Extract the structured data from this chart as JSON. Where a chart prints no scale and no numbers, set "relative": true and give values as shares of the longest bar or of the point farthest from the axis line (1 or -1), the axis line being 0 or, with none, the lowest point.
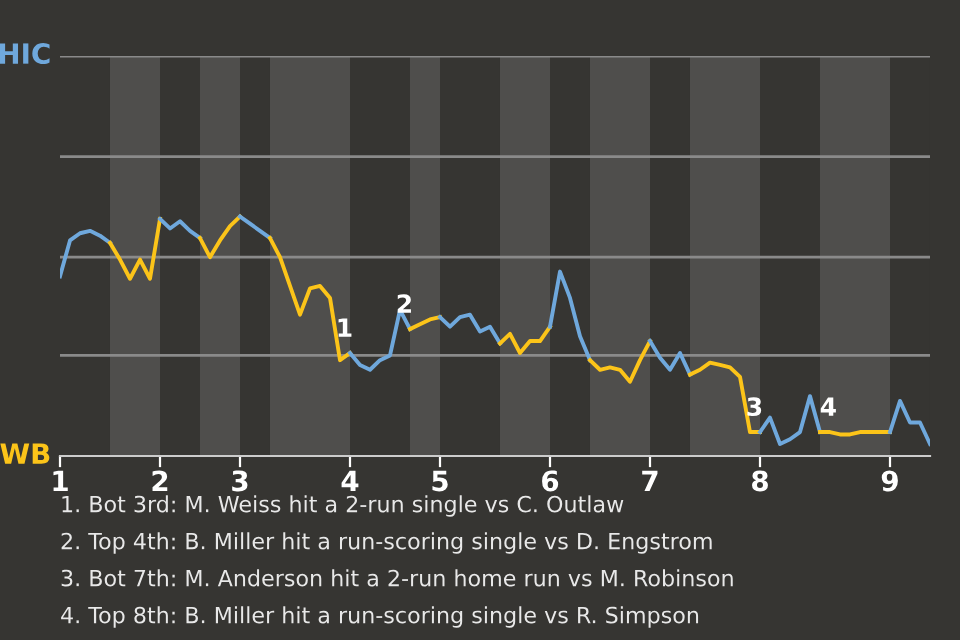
{
  "chart_data": {
    "type": "line",
    "relative": true,
    "categories": [
      "1",
      null,
      null,
      null,
      null,
      null,
      null,
      null,
      null,
      null,
      "2",
      null,
      null,
      null,
      null,
      null,
      null,
      null,
      "3",
      null,
      null,
      null,
      null,
      null,
      null,
      null,
      null,
      null,
      null,
      "4",
      null,
      null,
      null,
      null,
      null,
      null,
      null,
      null,
      "5",
      null,
      null,
      null,
      null,
      null,
      null,
      null,
      null,
      null,
      null,
      "6",
      null,
      null,
      null,
      null,
      null,
      null,
      null,
      null,
      null,
      "7",
      null,
      null,
      null,
      null,
      null,
      null,
      null,
      null,
      null,
      null,
      "8",
      null,
      null,
      null,
      null,
      null,
      null,
      null,
      null,
      null,
      null,
      null,
      null,
      "9",
      null,
      null,
      null,
      null
    ],
    "ref_lines": [
      {
        "axis": "y",
        "value": 0.42,
        "color": "#8a8a8a"
      },
      {
        "axis": "y",
        "value": 0.83,
        "color": "#8a8a8a"
      },
      {
        "axis": "y",
        "value": 1.25,
        "color": "#8a8a8a"
      },
      {
        "axis": "y",
        "value": 1.67,
        "color": "#8a8a8a"
      }
    ],
    "marker": "none",
    "line_style": "solid",
    "series": [
      {
        "name": "HIC",
        "color": "#6fa8dc",
        "values": [
          0.75,
          0.9,
          0.93,
          0.94,
          0.92,
          0.89,
          null,
          null,
          null,
          null,
          null,
          null,
          null,
          null,
          null,
          null,
          null,
          null,
          null,
          null,
          null,
          null,
          null,
          null,
          null,
          null,
          null,
          null,
          null,
          null,
          null,
          null,
          null,
          null,
          null,
          null,
          null,
          null,
          null,
          null,
          null,
          null,
          null,
          null,
          null,
          null,
          null,
          null,
          null,
          null,
          null,
          null,
          null,
          null,
          null,
          null,
          null,
          null,
          null,
          null,
          null,
          null,
          null,
          null,
          null,
          null,
          null,
          null,
          null,
          null,
          null,
          null,
          null,
          null,
          null,
          null,
          null,
          null,
          null,
          null,
          null,
          null,
          null,
          null,
          null,
          null,
          null,
          null
        ]
      },
      {
        "name": "WB",
        "color": "#fcc419",
        "values": [
          null,
          null,
          null,
          null,
          null,
          0.89,
          0.82,
          0.74,
          0.82,
          0.74,
          0.99,
          null,
          null,
          null,
          null,
          null,
          null,
          null,
          null,
          null,
          null,
          null,
          null,
          null,
          null,
          null,
          null,
          null,
          null,
          null,
          null,
          null,
          null,
          null,
          null,
          null,
          null,
          null,
          null,
          null,
          null,
          null,
          null,
          null,
          null,
          null,
          null,
          null,
          null,
          null,
          null,
          null,
          null,
          null,
          null,
          null,
          null,
          null,
          null,
          null,
          null,
          null,
          null,
          null,
          null,
          null,
          null,
          null,
          null,
          null,
          null,
          null,
          null,
          null,
          null,
          null,
          null,
          null,
          null,
          null,
          null,
          null,
          null,
          null,
          null,
          null,
          null,
          null
        ]
      },
      {
        "color": "#6fa8dc",
        "values": [
          null,
          null,
          null,
          null,
          null,
          null,
          null,
          null,
          null,
          null,
          0.99,
          0.95,
          0.98,
          0.94,
          0.91,
          null,
          null,
          null,
          null,
          null,
          null,
          null,
          null,
          null,
          null,
          null,
          null,
          null,
          null,
          null,
          null,
          null,
          null,
          null,
          null,
          null,
          null,
          null,
          null,
          null,
          null,
          null,
          null,
          null,
          null,
          null,
          null,
          null,
          null,
          null,
          null,
          null,
          null,
          null,
          null,
          null,
          null,
          null,
          null,
          null,
          null,
          null,
          null,
          null,
          null,
          null,
          null,
          null,
          null,
          null,
          null,
          null,
          null,
          null,
          null,
          null,
          null,
          null,
          null,
          null,
          null,
          null,
          null,
          null,
          null,
          null,
          null,
          null
        ]
      },
      {
        "color": "#fcc419",
        "values": [
          null,
          null,
          null,
          null,
          null,
          null,
          null,
          null,
          null,
          null,
          null,
          null,
          null,
          null,
          0.91,
          0.83,
          0.9,
          0.96,
          1,
          null,
          null,
          null,
          null,
          null,
          null,
          null,
          null,
          null,
          null,
          null,
          null,
          null,
          null,
          null,
          null,
          null,
          null,
          null,
          null,
          null,
          null,
          null,
          null,
          null,
          null,
          null,
          null,
          null,
          null,
          null,
          null,
          null,
          null,
          null,
          null,
          null,
          null,
          null,
          null,
          null,
          null,
          null,
          null,
          null,
          null,
          null,
          null,
          null,
          null,
          null,
          null,
          null,
          null,
          null,
          null,
          null,
          null,
          null,
          null,
          null,
          null,
          null,
          null,
          null,
          null,
          null,
          null,
          null
        ]
      },
      {
        "color": "#6fa8dc",
        "values": [
          null,
          null,
          null,
          null,
          null,
          null,
          null,
          null,
          null,
          null,
          null,
          null,
          null,
          null,
          null,
          null,
          null,
          null,
          1,
          0.97,
          0.94,
          0.91,
          null,
          null,
          null,
          null,
          null,
          null,
          null,
          null,
          null,
          null,
          null,
          null,
          null,
          null,
          null,
          null,
          null,
          null,
          null,
          null,
          null,
          null,
          null,
          null,
          null,
          null,
          null,
          null,
          null,
          null,
          null,
          null,
          null,
          null,
          null,
          null,
          null,
          null,
          null,
          null,
          null,
          null,
          null,
          null,
          null,
          null,
          null,
          null,
          null,
          null,
          null,
          null,
          null,
          null,
          null,
          null,
          null,
          null,
          null,
          null,
          null,
          null,
          null,
          null,
          null,
          null
        ]
      },
      {
        "color": "#fcc419",
        "values": [
          null,
          null,
          null,
          null,
          null,
          null,
          null,
          null,
          null,
          null,
          null,
          null,
          null,
          null,
          null,
          null,
          null,
          null,
          null,
          null,
          null,
          0.91,
          0.83,
          0.71,
          0.59,
          0.7,
          0.71,
          0.66,
          0.4,
          0.43,
          null,
          null,
          null,
          null,
          null,
          null,
          null,
          null,
          null,
          null,
          null,
          null,
          null,
          null,
          null,
          null,
          null,
          null,
          null,
          null,
          null,
          null,
          null,
          null,
          null,
          null,
          null,
          null,
          null,
          null,
          null,
          null,
          null,
          null,
          null,
          null,
          null,
          null,
          null,
          null,
          null,
          null,
          null,
          null,
          null,
          null,
          null,
          null,
          null,
          null,
          null,
          null,
          null,
          null,
          null,
          null,
          null,
          null
        ]
      },
      {
        "color": "#6fa8dc",
        "values": [
          null,
          null,
          null,
          null,
          null,
          null,
          null,
          null,
          null,
          null,
          null,
          null,
          null,
          null,
          null,
          null,
          null,
          null,
          null,
          null,
          null,
          null,
          null,
          null,
          null,
          null,
          null,
          null,
          null,
          0.43,
          0.38,
          0.36,
          0.4,
          0.42,
          0.61,
          0.53,
          null,
          null,
          null,
          null,
          null,
          null,
          null,
          null,
          null,
          null,
          null,
          null,
          null,
          null,
          null,
          null,
          null,
          null,
          null,
          null,
          null,
          null,
          null,
          null,
          null,
          null,
          null,
          null,
          null,
          null,
          null,
          null,
          null,
          null,
          null,
          null,
          null,
          null,
          null,
          null,
          null,
          null,
          null,
          null,
          null,
          null,
          null,
          null,
          null,
          null,
          null,
          null
        ]
      },
      {
        "color": "#fcc419",
        "values": [
          null,
          null,
          null,
          null,
          null,
          null,
          null,
          null,
          null,
          null,
          null,
          null,
          null,
          null,
          null,
          null,
          null,
          null,
          null,
          null,
          null,
          null,
          null,
          null,
          null,
          null,
          null,
          null,
          null,
          null,
          null,
          null,
          null,
          null,
          null,
          0.53,
          0.55,
          0.57,
          0.58,
          null,
          null,
          null,
          null,
          null,
          null,
          null,
          null,
          null,
          null,
          null,
          null,
          null,
          null,
          null,
          null,
          null,
          null,
          null,
          null,
          null,
          null,
          null,
          null,
          null,
          null,
          null,
          null,
          null,
          null,
          null,
          null,
          null,
          null,
          null,
          null,
          null,
          null,
          null,
          null,
          null,
          null,
          null,
          null,
          null,
          null,
          null,
          null,
          null
        ]
      },
      {
        "color": "#6fa8dc",
        "values": [
          null,
          null,
          null,
          null,
          null,
          null,
          null,
          null,
          null,
          null,
          null,
          null,
          null,
          null,
          null,
          null,
          null,
          null,
          null,
          null,
          null,
          null,
          null,
          null,
          null,
          null,
          null,
          null,
          null,
          null,
          null,
          null,
          null,
          null,
          null,
          null,
          null,
          null,
          0.58,
          0.54,
          0.58,
          0.59,
          0.52,
          0.54,
          0.47,
          null,
          null,
          null,
          null,
          null,
          null,
          null,
          null,
          null,
          null,
          null,
          null,
          null,
          null,
          null,
          null,
          null,
          null,
          null,
          null,
          null,
          null,
          null,
          null,
          null,
          null,
          null,
          null,
          null,
          null,
          null,
          null,
          null,
          null,
          null,
          null,
          null,
          null,
          null,
          null,
          null,
          null,
          null
        ]
      },
      {
        "color": "#fcc419",
        "values": [
          null,
          null,
          null,
          null,
          null,
          null,
          null,
          null,
          null,
          null,
          null,
          null,
          null,
          null,
          null,
          null,
          null,
          null,
          null,
          null,
          null,
          null,
          null,
          null,
          null,
          null,
          null,
          null,
          null,
          null,
          null,
          null,
          null,
          null,
          null,
          null,
          null,
          null,
          null,
          null,
          null,
          null,
          null,
          null,
          0.47,
          0.51,
          0.43,
          0.48,
          0.48,
          0.54,
          null,
          null,
          null,
          null,
          null,
          null,
          null,
          null,
          null,
          null,
          null,
          null,
          null,
          null,
          null,
          null,
          null,
          null,
          null,
          null,
          null,
          null,
          null,
          null,
          null,
          null,
          null,
          null,
          null,
          null,
          null,
          null,
          null,
          null,
          null,
          null,
          null,
          null
        ]
      },
      {
        "color": "#6fa8dc",
        "values": [
          null,
          null,
          null,
          null,
          null,
          null,
          null,
          null,
          null,
          null,
          null,
          null,
          null,
          null,
          null,
          null,
          null,
          null,
          null,
          null,
          null,
          null,
          null,
          null,
          null,
          null,
          null,
          null,
          null,
          null,
          null,
          null,
          null,
          null,
          null,
          null,
          null,
          null,
          null,
          null,
          null,
          null,
          null,
          null,
          null,
          null,
          null,
          null,
          null,
          0.54,
          0.77,
          0.66,
          0.5,
          0.4,
          null,
          null,
          null,
          null,
          null,
          null,
          null,
          null,
          null,
          null,
          null,
          null,
          null,
          null,
          null,
          null,
          null,
          null,
          null,
          null,
          null,
          null,
          null,
          null,
          null,
          null,
          null,
          null,
          null,
          null,
          null,
          null,
          null,
          null
        ]
      },
      {
        "color": "#fcc419",
        "values": [
          null,
          null,
          null,
          null,
          null,
          null,
          null,
          null,
          null,
          null,
          null,
          null,
          null,
          null,
          null,
          null,
          null,
          null,
          null,
          null,
          null,
          null,
          null,
          null,
          null,
          null,
          null,
          null,
          null,
          null,
          null,
          null,
          null,
          null,
          null,
          null,
          null,
          null,
          null,
          null,
          null,
          null,
          null,
          null,
          null,
          null,
          null,
          null,
          null,
          null,
          null,
          null,
          null,
          0.4,
          0.36,
          0.37,
          0.36,
          0.31,
          0.4,
          0.48,
          null,
          null,
          null,
          null,
          null,
          null,
          null,
          null,
          null,
          null,
          null,
          null,
          null,
          null,
          null,
          null,
          null,
          null,
          null,
          null,
          null,
          null,
          null,
          null,
          null,
          null,
          null,
          null
        ]
      },
      {
        "color": "#6fa8dc",
        "values": [
          null,
          null,
          null,
          null,
          null,
          null,
          null,
          null,
          null,
          null,
          null,
          null,
          null,
          null,
          null,
          null,
          null,
          null,
          null,
          null,
          null,
          null,
          null,
          null,
          null,
          null,
          null,
          null,
          null,
          null,
          null,
          null,
          null,
          null,
          null,
          null,
          null,
          null,
          null,
          null,
          null,
          null,
          null,
          null,
          null,
          null,
          null,
          null,
          null,
          null,
          null,
          null,
          null,
          null,
          null,
          null,
          null,
          null,
          null,
          0.48,
          0.41,
          0.36,
          0.43,
          0.34,
          null,
          null,
          null,
          null,
          null,
          null,
          null,
          null,
          null,
          null,
          null,
          null,
          null,
          null,
          null,
          null,
          null,
          null,
          null,
          null,
          null,
          null,
          null,
          null
        ]
      },
      {
        "color": "#fcc419",
        "values": [
          null,
          null,
          null,
          null,
          null,
          null,
          null,
          null,
          null,
          null,
          null,
          null,
          null,
          null,
          null,
          null,
          null,
          null,
          null,
          null,
          null,
          null,
          null,
          null,
          null,
          null,
          null,
          null,
          null,
          null,
          null,
          null,
          null,
          null,
          null,
          null,
          null,
          null,
          null,
          null,
          null,
          null,
          null,
          null,
          null,
          null,
          null,
          null,
          null,
          null,
          null,
          null,
          null,
          null,
          null,
          null,
          null,
          null,
          null,
          null,
          null,
          null,
          null,
          0.34,
          0.36,
          0.39,
          0.38,
          0.37,
          0.33,
          0.1,
          0.1,
          null,
          null,
          null,
          null,
          null,
          null,
          null,
          null,
          null,
          null,
          null,
          null,
          null,
          null,
          null,
          null,
          null
        ]
      },
      {
        "color": "#6fa8dc",
        "values": [
          null,
          null,
          null,
          null,
          null,
          null,
          null,
          null,
          null,
          null,
          null,
          null,
          null,
          null,
          null,
          null,
          null,
          null,
          null,
          null,
          null,
          null,
          null,
          null,
          null,
          null,
          null,
          null,
          null,
          null,
          null,
          null,
          null,
          null,
          null,
          null,
          null,
          null,
          null,
          null,
          null,
          null,
          null,
          null,
          null,
          null,
          null,
          null,
          null,
          null,
          null,
          null,
          null,
          null,
          null,
          null,
          null,
          null,
          null,
          null,
          null,
          null,
          null,
          null,
          null,
          null,
          null,
          null,
          null,
          null,
          0.1,
          0.16,
          0.05,
          0.07,
          0.1,
          0.25,
          0.1,
          null,
          null,
          null,
          null,
          null,
          null,
          null,
          null,
          null,
          null,
          null
        ]
      },
      {
        "color": "#fcc419",
        "values": [
          null,
          null,
          null,
          null,
          null,
          null,
          null,
          null,
          null,
          null,
          null,
          null,
          null,
          null,
          null,
          null,
          null,
          null,
          null,
          null,
          null,
          null,
          null,
          null,
          null,
          null,
          null,
          null,
          null,
          null,
          null,
          null,
          null,
          null,
          null,
          null,
          null,
          null,
          null,
          null,
          null,
          null,
          null,
          null,
          null,
          null,
          null,
          null,
          null,
          null,
          null,
          null,
          null,
          null,
          null,
          null,
          null,
          null,
          null,
          null,
          null,
          null,
          null,
          null,
          null,
          null,
          null,
          null,
          null,
          null,
          null,
          null,
          null,
          null,
          null,
          null,
          0.1,
          0.1,
          0.09,
          0.09,
          0.1,
          0.1,
          0.1,
          0.1,
          null,
          null,
          null,
          null
        ]
      },
      {
        "color": "#6fa8dc",
        "values": [
          null,
          null,
          null,
          null,
          null,
          null,
          null,
          null,
          null,
          null,
          null,
          null,
          null,
          null,
          null,
          null,
          null,
          null,
          null,
          null,
          null,
          null,
          null,
          null,
          null,
          null,
          null,
          null,
          null,
          null,
          null,
          null,
          null,
          null,
          null,
          null,
          null,
          null,
          null,
          null,
          null,
          null,
          null,
          null,
          null,
          null,
          null,
          null,
          null,
          null,
          null,
          null,
          null,
          null,
          null,
          null,
          null,
          null,
          null,
          null,
          null,
          null,
          null,
          null,
          null,
          null,
          null,
          null,
          null,
          null,
          null,
          null,
          null,
          null,
          null,
          null,
          null,
          null,
          null,
          null,
          null,
          null,
          null,
          0.1,
          0.23,
          0.14,
          0.14,
          0.05
        ]
      }
    ],
    "annotations": [
      {
        "text": "1",
        "y": 0.43
      },
      {
        "text": "2",
        "y": 0.53
      },
      {
        "text": "3",
        "y": 0.1
      },
      {
        "text": "4",
        "y": 0.1
      },
      "1. Bot 3rd: M. Weiss hit a 2-run single vs C. Outlaw",
      "2. Top 4th: B. Miller hit a run-scoring single vs D. Engstrom",
      "3. Bot 7th: M. Anderson hit a 2-run home run vs M. Robinson",
      "4. Top 8th: B. Miller hit a run-scoring single vs R. Simpson"
    ]
  }
}
